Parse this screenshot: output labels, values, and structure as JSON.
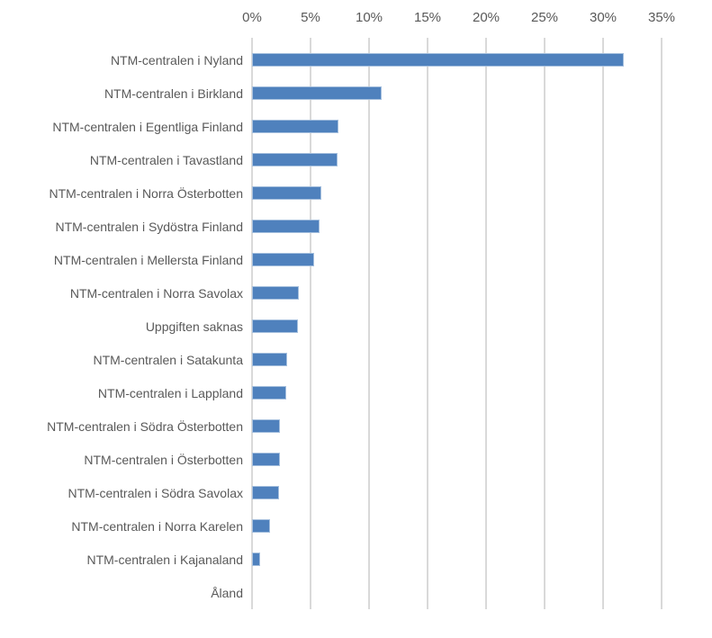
{
  "chart_data": {
    "type": "bar",
    "orientation": "horizontal",
    "title": "",
    "categories": [
      "NTM-centralen i Nyland",
      "NTM-centralen i Birkland",
      "NTM-centralen i Egentliga Finland",
      "NTM-centralen i Tavastland",
      "NTM-centralen i Norra Österbotten",
      "NTM-centralen i Sydöstra Finland",
      "NTM-centralen i Mellersta Finland",
      "NTM-centralen i Norra Savolax",
      "Uppgiften saknas",
      "NTM-centralen i Satakunta",
      "NTM-centralen i Lappland",
      "NTM-centralen i Södra Österbotten",
      "NTM-centralen i Österbotten",
      "NTM-centralen i Södra Savolax",
      "NTM-centralen i Norra Karelen",
      "NTM-centralen i Kajanaland",
      "Åland"
    ],
    "values": [
      31.8,
      11.1,
      7.4,
      7.3,
      5.9,
      5.8,
      5.3,
      4.0,
      3.9,
      3.0,
      2.9,
      2.4,
      2.4,
      2.3,
      1.5,
      0.7,
      0
    ],
    "x_ticks": [
      "0%",
      "5%",
      "10%",
      "15%",
      "20%",
      "25%",
      "30%",
      "35%"
    ],
    "x_min": 0,
    "x_max": 35,
    "grid": true,
    "legend": false,
    "axis_position": "top",
    "colors": {
      "bar_fill": "#4f81bd",
      "bar_border": "#a6c0de",
      "gridline": "#d9d9d9",
      "text": "#595959",
      "background": "#ffffff"
    }
  }
}
